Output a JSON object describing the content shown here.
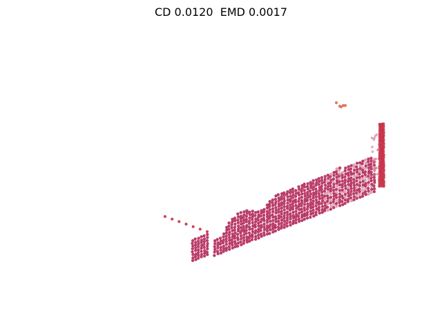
{
  "title": "CD 0.0120  EMD 0.0017",
  "colors": {
    "background": "#ffffff",
    "main_points": "#b2285a",
    "edge_points": "#c8324a",
    "far_points": "#e06a4a",
    "faded_points": "#d07a90"
  }
}
